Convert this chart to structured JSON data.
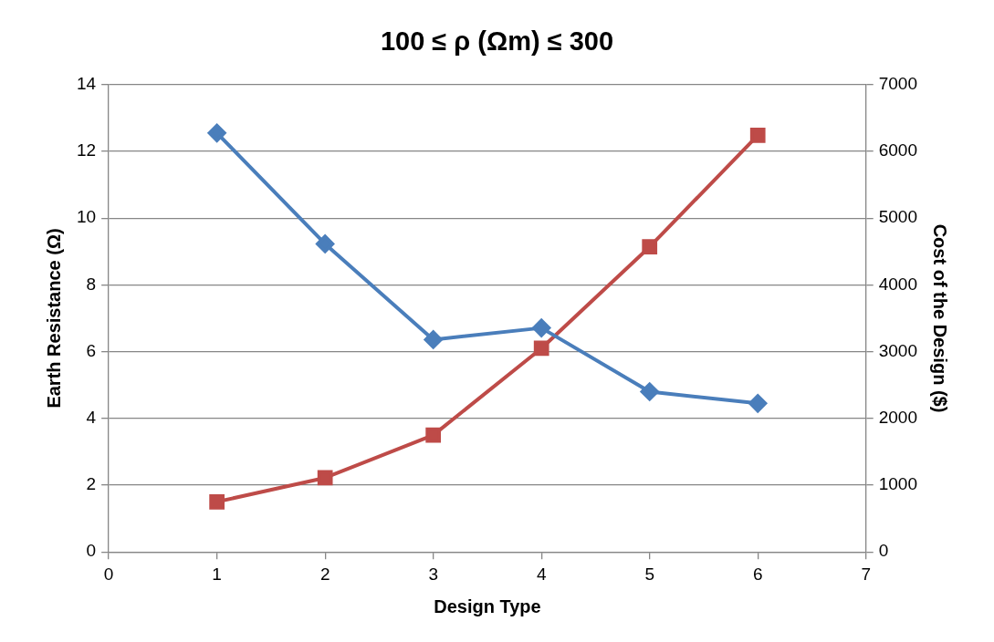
{
  "chart_data": {
    "type": "line",
    "title": "100 ≤ ρ (Ωm) ≤ 300",
    "xlabel": "Design Type",
    "ylabel": "Earth Resistance (Ω)",
    "y2label": "Cost of the Design ($)",
    "x": [
      1,
      2,
      3,
      4,
      5,
      6
    ],
    "series": [
      {
        "color": "#4a7ebb",
        "marker": "diamond",
        "values": [
          12.55,
          9.23,
          6.36,
          6.71,
          4.8,
          4.45
        ]
      },
      {
        "color": "#be4b48",
        "marker": "square",
        "axis": "y2",
        "values": [
          750,
          1110,
          1750,
          3050,
          4570,
          6240
        ]
      }
    ],
    "xlim": [
      0,
      7
    ],
    "xticks": [
      0,
      1,
      2,
      3,
      4,
      5,
      6,
      7
    ],
    "ylim": [
      0,
      14
    ],
    "yticks": [
      0,
      2,
      4,
      6,
      8,
      10,
      12,
      14
    ],
    "y2lim": [
      0,
      7000
    ],
    "y2ticks": [
      0,
      1000,
      2000,
      3000,
      4000,
      5000,
      6000,
      7000
    ],
    "grid": "y",
    "legend": false,
    "line_style": "solid"
  }
}
